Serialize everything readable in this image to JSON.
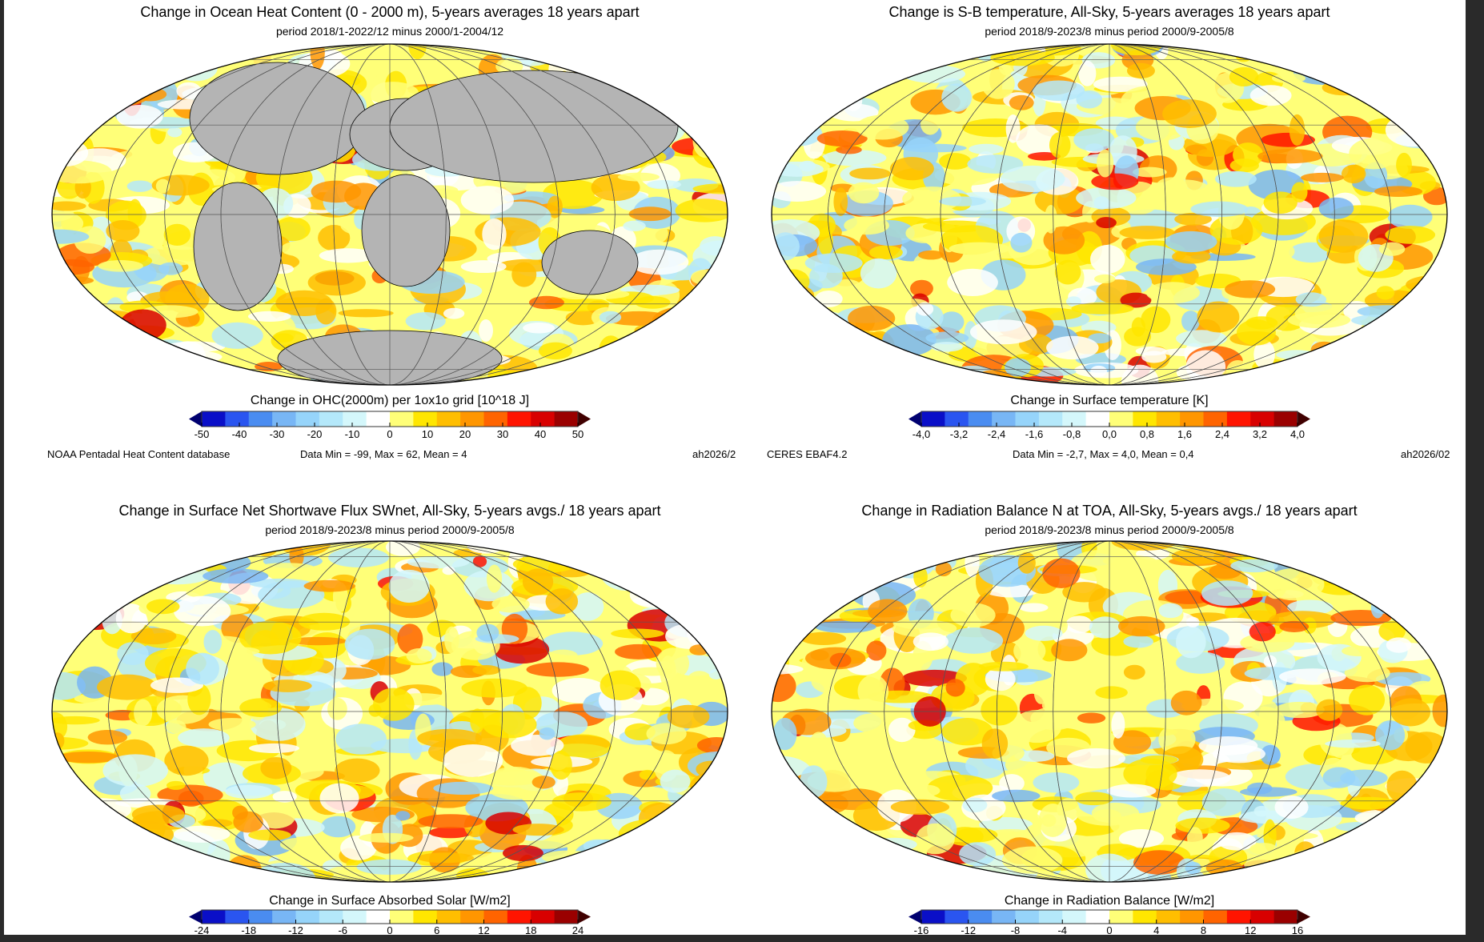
{
  "palette": [
    "#0a0fc8",
    "#2a55f0",
    "#4a8cf0",
    "#78b6f5",
    "#96d4fa",
    "#b4e8fa",
    "#d4f7fb",
    "#ffffff",
    "#ffff78",
    "#ffe600",
    "#ffbe00",
    "#ff9600",
    "#ff6400",
    "#ff1400",
    "#d80000",
    "#9a0000"
  ],
  "arrow_colors": {
    "low": "#000070",
    "high": "#400000"
  },
  "land_color": "#b4b4b4",
  "chart_data": [
    {
      "type": "heatmap",
      "projection": "mollweide",
      "title": "Change in Ocean Heat Content (0 - 2000 m), 5-years averages 18 years apart",
      "subtitle": "period 2018/1-2022/12 minus 2000/1-2004/12",
      "colorbar_label": "Change in OHC(2000m) per 1ox1o grid [10^18 J]",
      "ticks": [
        "-50",
        "-40",
        "-30",
        "-20",
        "-10",
        "0",
        "10",
        "20",
        "30",
        "40",
        "50"
      ],
      "vmin": -50,
      "vmax": 50,
      "source": "NOAA Pentadal Heat Content database",
      "stats": "Data Min = -99, Max = 62, Mean = 4",
      "credit": "ah2026/2",
      "land_masked": true
    },
    {
      "type": "heatmap",
      "projection": "mollweide",
      "title": "Change is S-B temperature, All-Sky, 5-years averages 18 years apart",
      "subtitle": "period 2018/9-2023/8 minus period 2000/9-2005/8",
      "colorbar_label": "Change in Surface temperature [K]",
      "ticks": [
        "-4,0",
        "-3,2",
        "-2,4",
        "-1,6",
        "-0,8",
        "0,0",
        "0,8",
        "1,6",
        "2,4",
        "3,2",
        "4,0"
      ],
      "vmin": -4.0,
      "vmax": 4.0,
      "source": "CERES EBAF4.2",
      "stats": "Data Min = -2,7, Max = 4,0, Mean = 0,4",
      "credit": "ah2026/02",
      "land_masked": false
    },
    {
      "type": "heatmap",
      "projection": "mollweide",
      "title": "Change in Surface Net Shortwave Flux SWnet, All-Sky, 5-years avgs./ 18 years apart",
      "subtitle": "period 2018/9-2023/8 minus period 2000/9-2005/8",
      "colorbar_label": "Change in Surface Absorbed Solar  [W/m2]",
      "ticks": [
        "-24",
        "-18",
        "-12",
        "-6",
        "0",
        "6",
        "12",
        "18",
        "24"
      ],
      "vmin": -24,
      "vmax": 24,
      "land_masked": false
    },
    {
      "type": "heatmap",
      "projection": "mollweide",
      "title": "Change in Radiation Balance N at TOA, All-Sky, 5-years avgs./ 18 years apart",
      "subtitle": "period 2018/9-2023/8 minus period 2000/9-2005/8",
      "colorbar_label": "Change in Radiation Balance  [W/m2]",
      "ticks": [
        "-16",
        "-12",
        "-8",
        "-4",
        "0",
        "4",
        "8",
        "12",
        "16"
      ],
      "vmin": -16,
      "vmax": 16,
      "land_masked": false
    }
  ]
}
